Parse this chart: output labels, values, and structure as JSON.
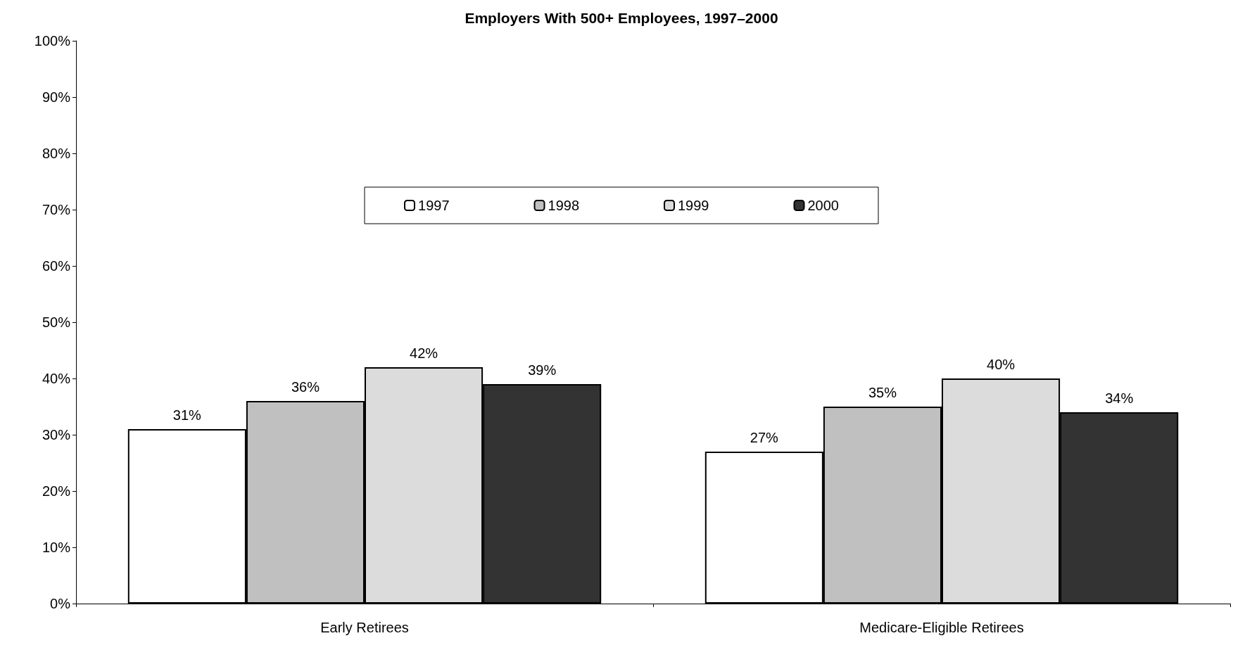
{
  "chart_data": {
    "type": "bar",
    "title": "Employers With 500+ Employees, 1997–2000",
    "categories": [
      "Early Retirees",
      "Medicare-Eligible Retirees"
    ],
    "series": [
      {
        "name": "1997",
        "color": "#ffffff",
        "values": [
          31,
          27
        ],
        "value_labels": [
          "31%",
          "27%"
        ]
      },
      {
        "name": "1998",
        "color": "#c0c0c0",
        "values": [
          36,
          35
        ],
        "value_labels": [
          "36%",
          "35%"
        ]
      },
      {
        "name": "1999",
        "color": "#dcdcdc",
        "values": [
          42,
          40
        ],
        "value_labels": [
          "42%",
          "40%"
        ]
      },
      {
        "name": "2000",
        "color": "#333333",
        "values": [
          39,
          34
        ],
        "value_labels": [
          "39%",
          "34%"
        ]
      }
    ],
    "ylim": [
      0,
      100
    ],
    "yticks": [
      {
        "value": 0,
        "label": "0%"
      },
      {
        "value": 10,
        "label": "10%"
      },
      {
        "value": 20,
        "label": "20%"
      },
      {
        "value": 30,
        "label": "30%"
      },
      {
        "value": 40,
        "label": "40%"
      },
      {
        "value": 50,
        "label": "50%"
      },
      {
        "value": 60,
        "label": "60%"
      },
      {
        "value": 70,
        "label": "70%"
      },
      {
        "value": 80,
        "label": "80%"
      },
      {
        "value": 90,
        "label": "90%"
      },
      {
        "value": 100,
        "label": "100%"
      }
    ],
    "grid": false,
    "legend": "top"
  }
}
